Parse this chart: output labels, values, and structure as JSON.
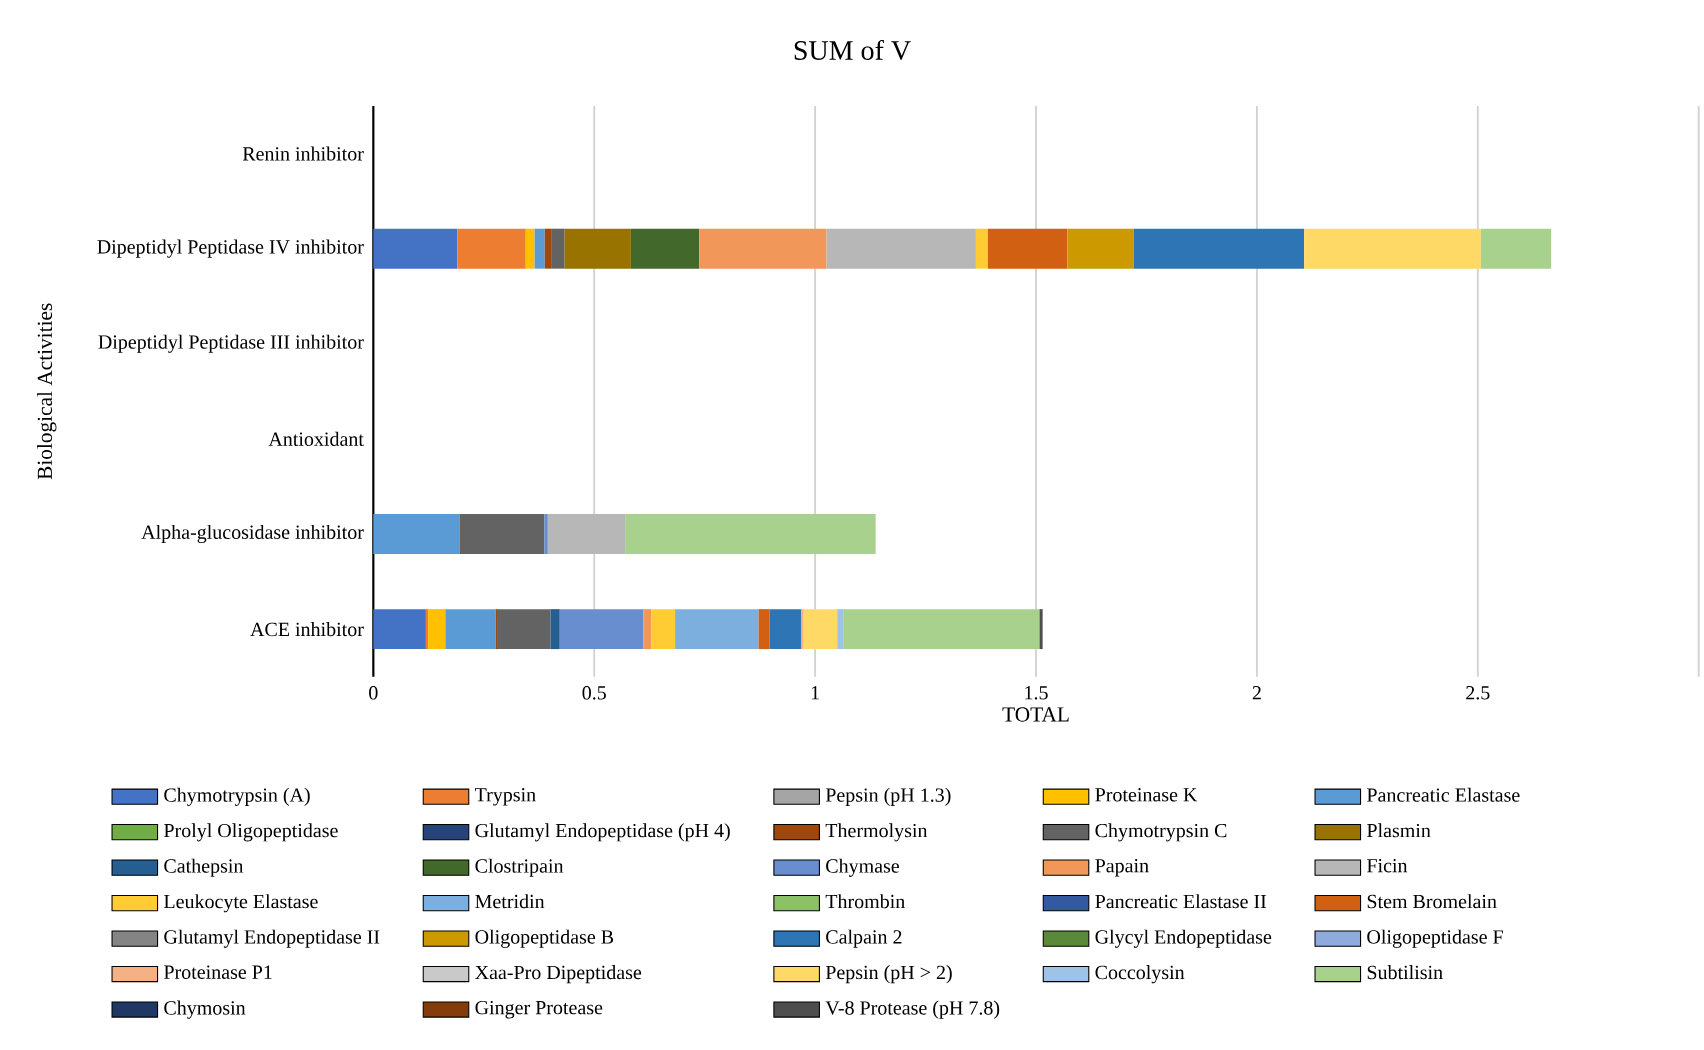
{
  "chart_data": {
    "type": "bar",
    "orientation": "horizontal",
    "stacked": true,
    "title": "SUM of V",
    "xlabel": "TOTAL",
    "ylabel": "Biological Activities",
    "categories": [
      "Renin inhibitor",
      "Dipeptidyl Peptidase IV inhibitor",
      "Dipeptidyl Peptidase III inhibitor",
      "Antioxidant",
      "Alpha-glucosidase inhibitor",
      "ACE inhibitor"
    ],
    "xlim": [
      0,
      3
    ],
    "xticks": [
      0,
      0.5,
      1,
      1.5,
      2,
      2.5,
      {
        "value": 3,
        "label": null
      }
    ],
    "grid": "x",
    "legend": "bottom",
    "series": [
      {
        "name": "Chymotrypsin (A)",
        "color": "#4472c4",
        "values": [
          null,
          0.19,
          null,
          null,
          null,
          0.119
        ]
      },
      {
        "name": "Trypsin",
        "color": "#ed7d31",
        "values": [
          null,
          0.155,
          null,
          null,
          null,
          0.005
        ]
      },
      {
        "name": "Pepsin (pH 1.3)",
        "color": "#a5a5a5",
        "values": [
          null,
          null,
          null,
          null,
          null,
          null
        ]
      },
      {
        "name": "Proteinase K",
        "color": "#ffc000",
        "values": [
          null,
          0.02,
          null,
          null,
          null,
          0.039
        ]
      },
      {
        "name": "Pancreatic Elastase",
        "color": "#5b9bd5",
        "values": [
          null,
          0.023,
          null,
          null,
          0.195,
          0.114
        ]
      },
      {
        "name": "Prolyl Oligopeptidase",
        "color": "#70ad47",
        "values": [
          null,
          null,
          null,
          null,
          null,
          null
        ]
      },
      {
        "name": "Glutamyl Endopeptidase (pH 4)",
        "color": "#264478",
        "values": [
          null,
          null,
          null,
          null,
          null,
          null
        ]
      },
      {
        "name": "Thermolysin",
        "color": "#9e480e",
        "values": [
          null,
          0.016,
          null,
          null,
          null,
          0.005
        ]
      },
      {
        "name": "Chymotrypsin C",
        "color": "#636363",
        "values": [
          null,
          0.029,
          null,
          null,
          0.192,
          0.119
        ]
      },
      {
        "name": "Plasmin",
        "color": "#997300",
        "values": [
          null,
          0.15,
          null,
          null,
          null,
          null
        ]
      },
      {
        "name": "Cathepsin",
        "color": "#255e91",
        "values": [
          null,
          null,
          null,
          null,
          null,
          0.021
        ]
      },
      {
        "name": "Clostripain",
        "color": "#43682b",
        "values": [
          null,
          0.155,
          null,
          null,
          null,
          null
        ]
      },
      {
        "name": "Chymase",
        "color": "#698ed0",
        "values": [
          null,
          null,
          null,
          null,
          0.008,
          0.189
        ]
      },
      {
        "name": "Papain",
        "color": "#f1975a",
        "values": [
          null,
          0.288,
          null,
          null,
          null,
          0.018
        ]
      },
      {
        "name": "Ficin",
        "color": "#b7b7b7",
        "values": [
          null,
          0.338,
          null,
          null,
          0.175,
          null
        ]
      },
      {
        "name": "Leukocyte Elastase",
        "color": "#ffcd33",
        "values": [
          null,
          0.027,
          null,
          null,
          null,
          0.054
        ]
      },
      {
        "name": "Metridin",
        "color": "#7cafdd",
        "values": [
          null,
          null,
          null,
          null,
          null,
          0.189
        ]
      },
      {
        "name": "Thrombin",
        "color": "#8cc168",
        "values": [
          null,
          null,
          null,
          null,
          null,
          null
        ]
      },
      {
        "name": "Pancreatic Elastase II",
        "color": "#335aa1",
        "values": [
          null,
          null,
          null,
          null,
          null,
          null
        ]
      },
      {
        "name": "Stem Bromelain",
        "color": "#d26012",
        "values": [
          null,
          0.18,
          null,
          null,
          null,
          0.025
        ]
      },
      {
        "name": "Glutamyl Endopeptidase II",
        "color": "#848484",
        "values": [
          null,
          null,
          null,
          null,
          null,
          null
        ]
      },
      {
        "name": "Oligopeptidase B",
        "color": "#cc9a00",
        "values": [
          null,
          0.15,
          null,
          null,
          null,
          null
        ]
      },
      {
        "name": "Calpain 2",
        "color": "#2e75b6",
        "values": [
          null,
          0.386,
          null,
          null,
          null,
          0.071
        ]
      },
      {
        "name": "Glycyl Endopeptidase",
        "color": "#5a8a39",
        "values": [
          null,
          null,
          null,
          null,
          null,
          null
        ]
      },
      {
        "name": "Oligopeptidase F",
        "color": "#8faadc",
        "values": [
          null,
          null,
          null,
          null,
          null,
          null
        ]
      },
      {
        "name": "Proteinase P1",
        "color": "#f4b183",
        "values": [
          null,
          null,
          null,
          null,
          null,
          0.006
        ]
      },
      {
        "name": "Xaa-Pro Dipeptidase",
        "color": "#c9c9c9",
        "values": [
          null,
          null,
          null,
          null,
          null,
          null
        ]
      },
      {
        "name": "Pepsin (pH > 2)",
        "color": "#ffd966",
        "values": [
          null,
          0.4,
          null,
          null,
          null,
          0.076
        ]
      },
      {
        "name": "Coccolysin",
        "color": "#9dc3e6",
        "values": [
          null,
          null,
          null,
          null,
          null,
          0.015
        ]
      },
      {
        "name": "Subtilisin",
        "color": "#a9d18e",
        "values": [
          null,
          0.159,
          null,
          null,
          0.567,
          0.443
        ]
      },
      {
        "name": "Chymosin",
        "color": "#1f3864",
        "values": [
          null,
          null,
          null,
          null,
          null,
          null
        ]
      },
      {
        "name": "Ginger Protease",
        "color": "#843c0c",
        "values": [
          null,
          null,
          null,
          null,
          null,
          null
        ]
      },
      {
        "name": "V-8 Protease (pH 7.8)",
        "color": "#4e4e4e",
        "values": [
          null,
          null,
          null,
          null,
          null,
          0.007
        ]
      }
    ]
  }
}
